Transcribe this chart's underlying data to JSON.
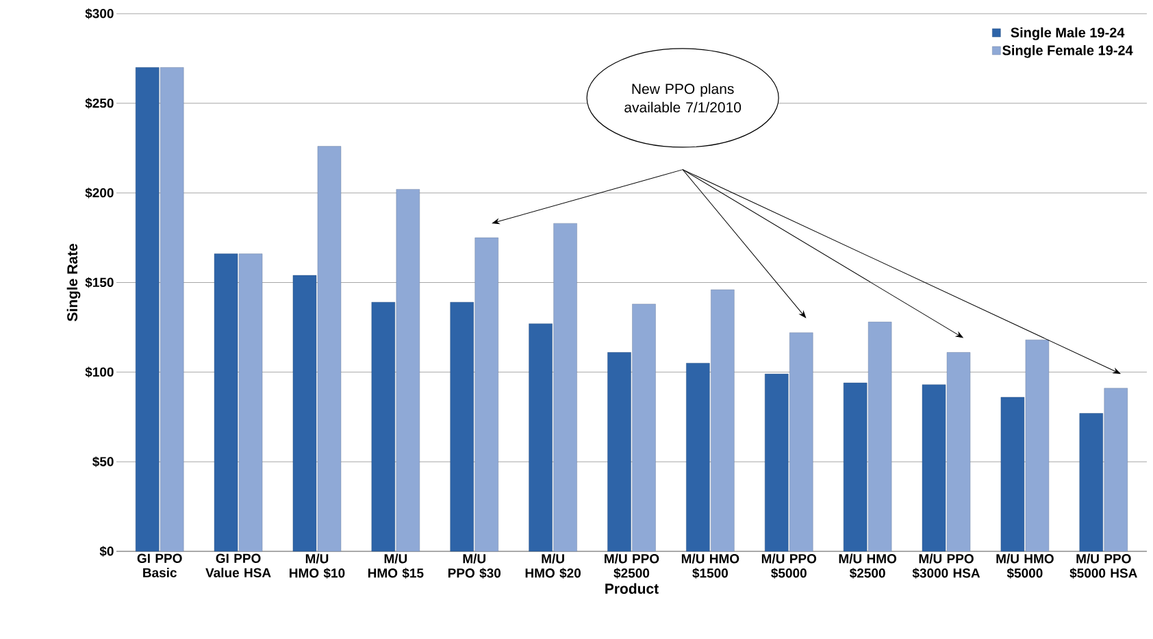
{
  "chart_data": {
    "type": "bar",
    "xlabel": "Product",
    "ylabel": "Single Rate",
    "categories": [
      "GI PPO Basic",
      "GI PPO Value HSA",
      "M/U HMO $10",
      "M/U HMO $15",
      "M/U PPO $30",
      "M/U HMO $20",
      "M/U PPO $2500",
      "M/U HMO $1500",
      "M/U PPO $5000",
      "M/U HMO $2500",
      "M/U PPO $3000 HSA",
      "M/U HMO $5000",
      "M/U PPO $5000 HSA"
    ],
    "series": [
      {
        "name": "Single Male 19-24",
        "color": "#2e64a8",
        "values": [
          270,
          166,
          154,
          139,
          139,
          127,
          111,
          105,
          99,
          94,
          93,
          86,
          77
        ]
      },
      {
        "name": "Single Female 19-24",
        "color": "#8fa9d6",
        "values": [
          270,
          166,
          226,
          202,
          175,
          183,
          138,
          146,
          122,
          128,
          111,
          118,
          91
        ]
      }
    ],
    "ylim": [
      0,
      300
    ],
    "yticks": [
      {
        "value": 0,
        "label": "$0"
      },
      {
        "value": 50,
        "label": "$50"
      },
      {
        "value": 100,
        "label": "$100"
      },
      {
        "value": 150,
        "label": "$150"
      },
      {
        "value": 200,
        "label": "$200"
      },
      {
        "value": 250,
        "label": "$250"
      },
      {
        "value": 300,
        "label": "$300"
      }
    ],
    "grid": "y",
    "legend": "top right",
    "annotations": [
      "New PPO plans available 7/1/2010"
    ]
  }
}
